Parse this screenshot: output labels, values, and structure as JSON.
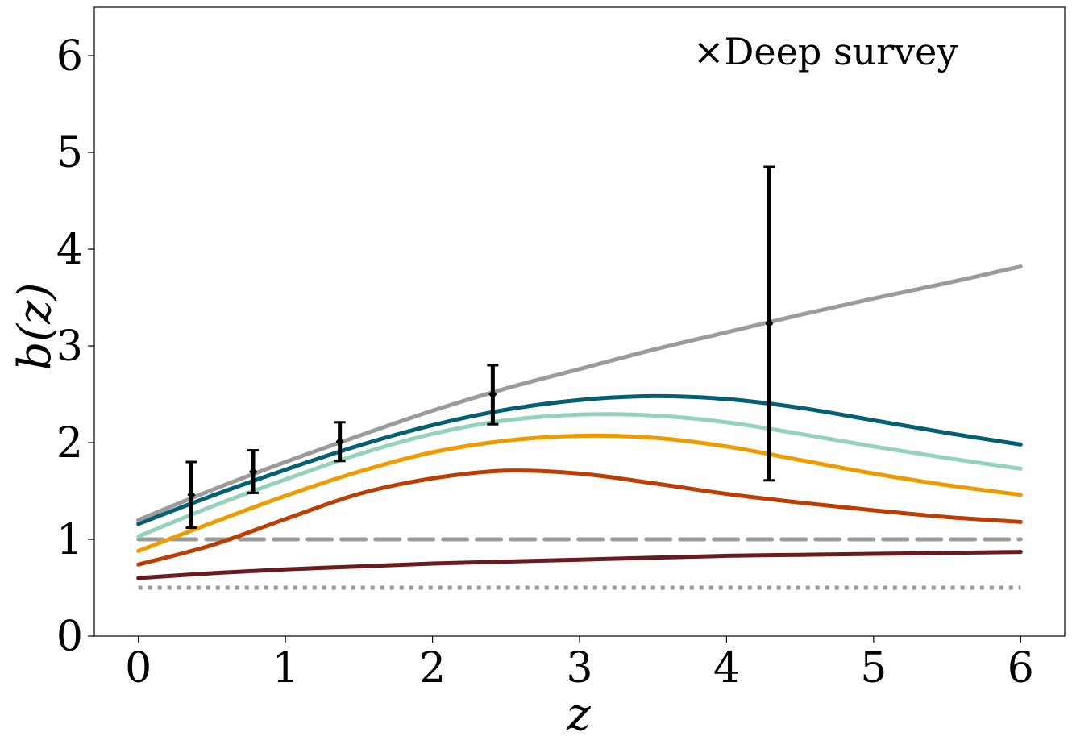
{
  "chart_data": {
    "type": "line",
    "xlabel": "z",
    "ylabel": "b(z)",
    "xlim": [
      -0.3,
      6.3
    ],
    "ylim": [
      0,
      6.5
    ],
    "xticks": [
      "0",
      "1",
      "2",
      "3",
      "4",
      "5",
      "6"
    ],
    "yticks": [
      "0",
      "1",
      "2",
      "3",
      "4",
      "5",
      "6"
    ],
    "grid": false,
    "annotation": "×Deep survey",
    "x": [
      0.0,
      0.5,
      1.0,
      1.5,
      2.0,
      2.5,
      3.0,
      3.5,
      4.0,
      4.5,
      5.0,
      5.5,
      6.0
    ],
    "series": [
      {
        "color": "#9b9b9b",
        "style": "solid",
        "values": [
          1.2,
          1.51,
          1.8,
          2.07,
          2.33,
          2.56,
          2.76,
          2.96,
          3.14,
          3.32,
          3.49,
          3.65,
          3.82
        ]
      },
      {
        "color": "#045f73",
        "style": "solid",
        "values": [
          1.16,
          1.45,
          1.72,
          1.97,
          2.18,
          2.34,
          2.44,
          2.48,
          2.45,
          2.36,
          2.23,
          2.1,
          1.98
        ]
      },
      {
        "color": "#94d2bd",
        "style": "solid",
        "values": [
          1.03,
          1.34,
          1.62,
          1.88,
          2.09,
          2.23,
          2.29,
          2.28,
          2.21,
          2.09,
          1.96,
          1.84,
          1.73
        ]
      },
      {
        "color": "#ee9b00",
        "style": "solid",
        "values": [
          0.88,
          1.17,
          1.45,
          1.7,
          1.9,
          2.02,
          2.07,
          2.05,
          1.96,
          1.82,
          1.68,
          1.56,
          1.46
        ]
      },
      {
        "color": "#bb3e03",
        "style": "solid",
        "values": [
          0.74,
          0.94,
          1.21,
          1.47,
          1.63,
          1.71,
          1.68,
          1.58,
          1.47,
          1.38,
          1.3,
          1.23,
          1.18
        ]
      },
      {
        "color": "#6a1b1f",
        "style": "solid",
        "values": [
          0.6,
          0.65,
          0.69,
          0.72,
          0.75,
          0.77,
          0.79,
          0.81,
          0.83,
          0.84,
          0.85,
          0.86,
          0.87
        ]
      },
      {
        "color": "#9b9b9b",
        "style": "dashed",
        "values": [
          1.0,
          1.0,
          1.0,
          1.0,
          1.0,
          1.0,
          1.0,
          1.0,
          1.0,
          1.0,
          1.0,
          1.0,
          1.0
        ]
      },
      {
        "color": "#9b9b9b",
        "style": "dotted",
        "values": [
          0.5,
          0.5,
          0.5,
          0.5,
          0.5,
          0.5,
          0.5,
          0.5,
          0.5,
          0.5,
          0.5,
          0.5,
          0.5
        ]
      }
    ],
    "points": [
      {
        "x": 0.36,
        "y": 1.46,
        "err_low": 1.12,
        "err_high": 1.8
      },
      {
        "x": 0.78,
        "y": 1.7,
        "err_low": 1.48,
        "err_high": 1.92
      },
      {
        "x": 1.37,
        "y": 2.01,
        "err_low": 1.81,
        "err_high": 2.21
      },
      {
        "x": 2.41,
        "y": 2.5,
        "err_low": 2.19,
        "err_high": 2.8
      },
      {
        "x": 4.29,
        "y": 3.23,
        "err_low": 1.61,
        "err_high": 4.85
      }
    ]
  }
}
